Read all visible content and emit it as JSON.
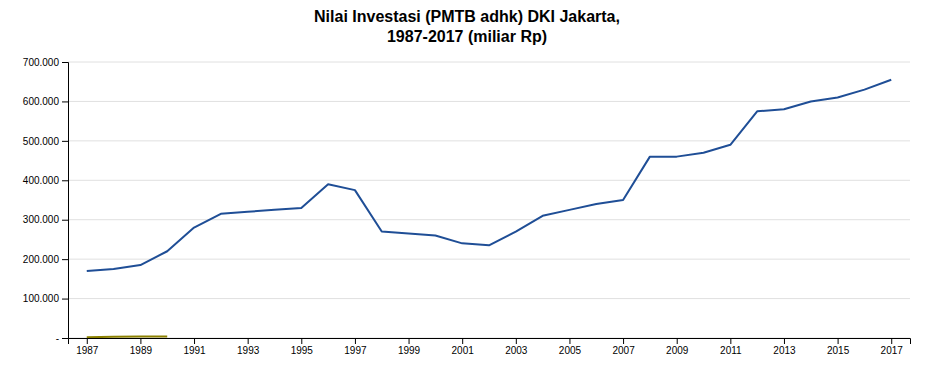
{
  "chart_data": {
    "type": "line",
    "title": "Nilai Investasi (PMTB adhk) DKI Jakarta,\n1987-2017 (miliar Rp)",
    "x": [
      1987,
      1988,
      1989,
      1990,
      1991,
      1992,
      1993,
      1994,
      1995,
      1996,
      1997,
      1998,
      1999,
      2000,
      2001,
      2002,
      2003,
      2004,
      2005,
      2006,
      2007,
      2008,
      2009,
      2010,
      2011,
      2012,
      2013,
      2014,
      2015,
      2016,
      2017
    ],
    "series": [
      {
        "color": "#1F4E96",
        "values": [
          170000,
          175000,
          185000,
          220000,
          280000,
          315000,
          320000,
          325000,
          330000,
          390000,
          375000,
          270000,
          265000,
          260000,
          240000,
          235000,
          270000,
          310000,
          325000,
          340000,
          350000,
          460000,
          460000,
          470000,
          490000,
          575000,
          580000,
          600000,
          610000,
          630000,
          655000
        ]
      },
      {
        "color": "#8B8000",
        "values": [
          2000,
          3000,
          4000,
          3500,
          null,
          null,
          null,
          null,
          null,
          null,
          null,
          null,
          null,
          null,
          null,
          null,
          null,
          null,
          null,
          null,
          null,
          null,
          null,
          null,
          null,
          null,
          null,
          null,
          null,
          null,
          null
        ]
      }
    ],
    "xlim": [
      1986.3,
      2017.7
    ],
    "xticks": [
      1987,
      1989,
      1991,
      1993,
      1995,
      1997,
      1999,
      2001,
      2003,
      2005,
      2007,
      2009,
      2011,
      2013,
      2015,
      2017
    ],
    "ylim": [
      0,
      700000
    ],
    "yticks": [
      {
        "value": 0,
        "label": "-"
      },
      {
        "value": 100000,
        "label": "100.000"
      },
      {
        "value": 200000,
        "label": "200.000"
      },
      {
        "value": 300000,
        "label": "300.000"
      },
      {
        "value": 400000,
        "label": "400.000"
      },
      {
        "value": 500000,
        "label": "500.000"
      },
      {
        "value": 600000,
        "label": "600.000"
      },
      {
        "value": 700000,
        "label": "700.000"
      }
    ],
    "grid": true
  }
}
